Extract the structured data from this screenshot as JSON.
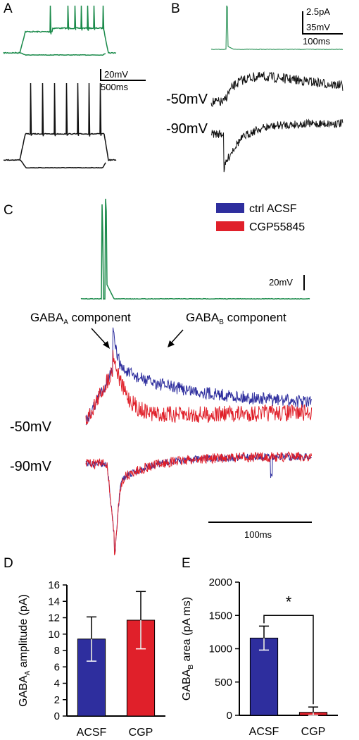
{
  "figure": {
    "panels": {
      "A": "A",
      "B": "B",
      "C": "C",
      "D": "D",
      "E": "E"
    },
    "colors": {
      "green": "#1a8a4a",
      "black": "#111111",
      "blue": "#2e2e9e",
      "red": "#e0202a"
    }
  },
  "panel_a": {
    "scale_v": "20mV",
    "scale_t": "500ms"
  },
  "panel_b": {
    "scale_pA": "2.5pA",
    "scale_mV": "35mV",
    "scale_t": "100ms",
    "trace_labels": [
      "-50mV",
      "-90mV"
    ]
  },
  "panel_c": {
    "legend": [
      {
        "label": "ctrl ACSF",
        "color": "#2e2e9e"
      },
      {
        "label": "CGP55845",
        "color": "#e0202a"
      }
    ],
    "scale_v": "20mV",
    "scale_t": "100ms",
    "annot_a": {
      "main": "GABA",
      "sub": "A",
      "rest": " component"
    },
    "annot_b": {
      "main": "GABA",
      "sub": "B",
      "rest": " component"
    },
    "trace_labels": [
      "-50mV",
      "-90mV"
    ]
  },
  "chart_data": [
    {
      "type": "bar",
      "panel": "D",
      "categories": [
        "ACSF",
        "CGP"
      ],
      "values": [
        9.4,
        11.7
      ],
      "errors": [
        2.7,
        3.5
      ],
      "colors": [
        "#2e2e9e",
        "#e0202a"
      ],
      "ylabel": {
        "main": "GABA",
        "sub": "A",
        "rest": " amplitude (pA)"
      },
      "yticks": [
        0,
        2,
        4,
        6,
        8,
        10,
        12,
        14,
        16
      ],
      "ylim": [
        0,
        16
      ]
    },
    {
      "type": "bar",
      "panel": "E",
      "categories": [
        "ACSF",
        "CGP"
      ],
      "values": [
        1160,
        45
      ],
      "errors": [
        180,
        80
      ],
      "colors": [
        "#2e2e9e",
        "#e0202a"
      ],
      "ylabel": {
        "main": "GABA",
        "sub": "B",
        "rest": " area (pA ms)"
      },
      "yticks": [
        0,
        500,
        1000,
        1500,
        2000
      ],
      "ylim": [
        0,
        2000
      ],
      "significance": "*"
    }
  ]
}
